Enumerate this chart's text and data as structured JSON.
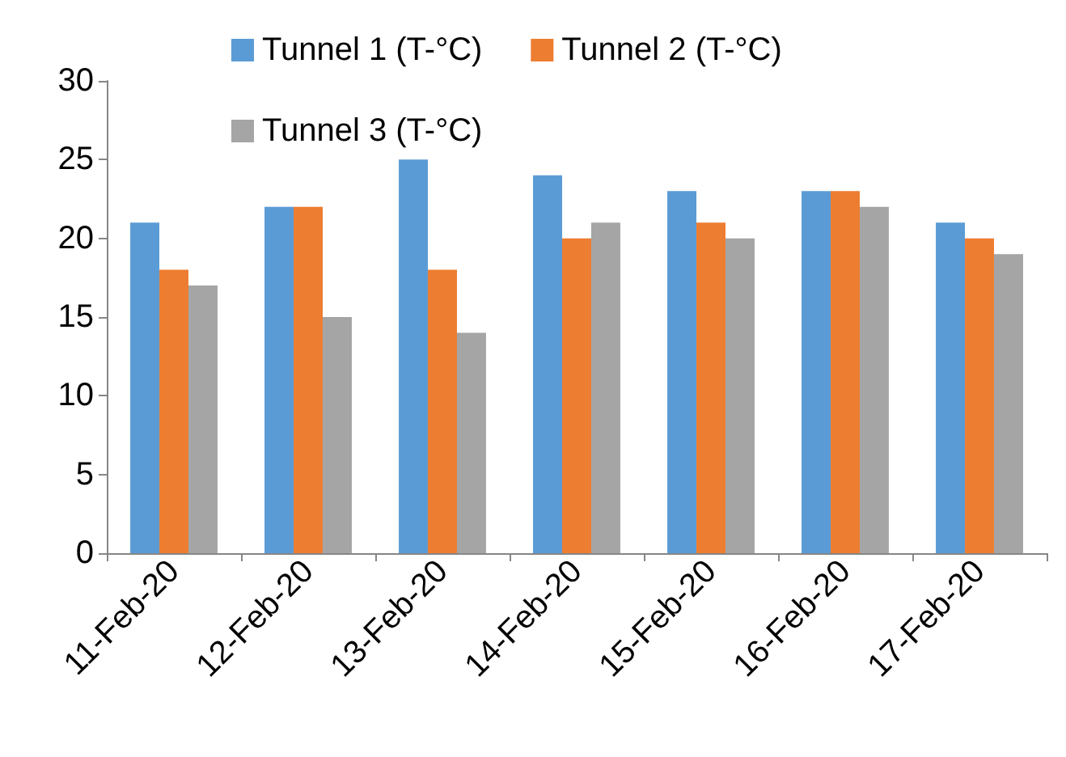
{
  "chart_data": {
    "type": "bar",
    "categories": [
      "11-Feb-20",
      "12-Feb-20",
      "13-Feb-20",
      "14-Feb-20",
      "15-Feb-20",
      "16-Feb-20",
      "17-Feb-20"
    ],
    "series": [
      {
        "name": "Tunnel 1 (T-°C)",
        "color": "#5b9bd5",
        "values": [
          21,
          22,
          25,
          24,
          23,
          23,
          21
        ]
      },
      {
        "name": "Tunnel 2 (T-°C)",
        "color": "#ed7d31",
        "values": [
          18,
          22,
          18,
          20,
          21,
          23,
          20
        ]
      },
      {
        "name": "Tunnel 3 (T-°C)",
        "color": "#a5a5a5",
        "values": [
          17,
          15,
          14,
          21,
          20,
          22,
          19
        ]
      }
    ],
    "ylim": [
      0,
      30
    ],
    "yticks": [
      0,
      5,
      10,
      15,
      20,
      25,
      30
    ],
    "grid": false,
    "legend": "top"
  }
}
